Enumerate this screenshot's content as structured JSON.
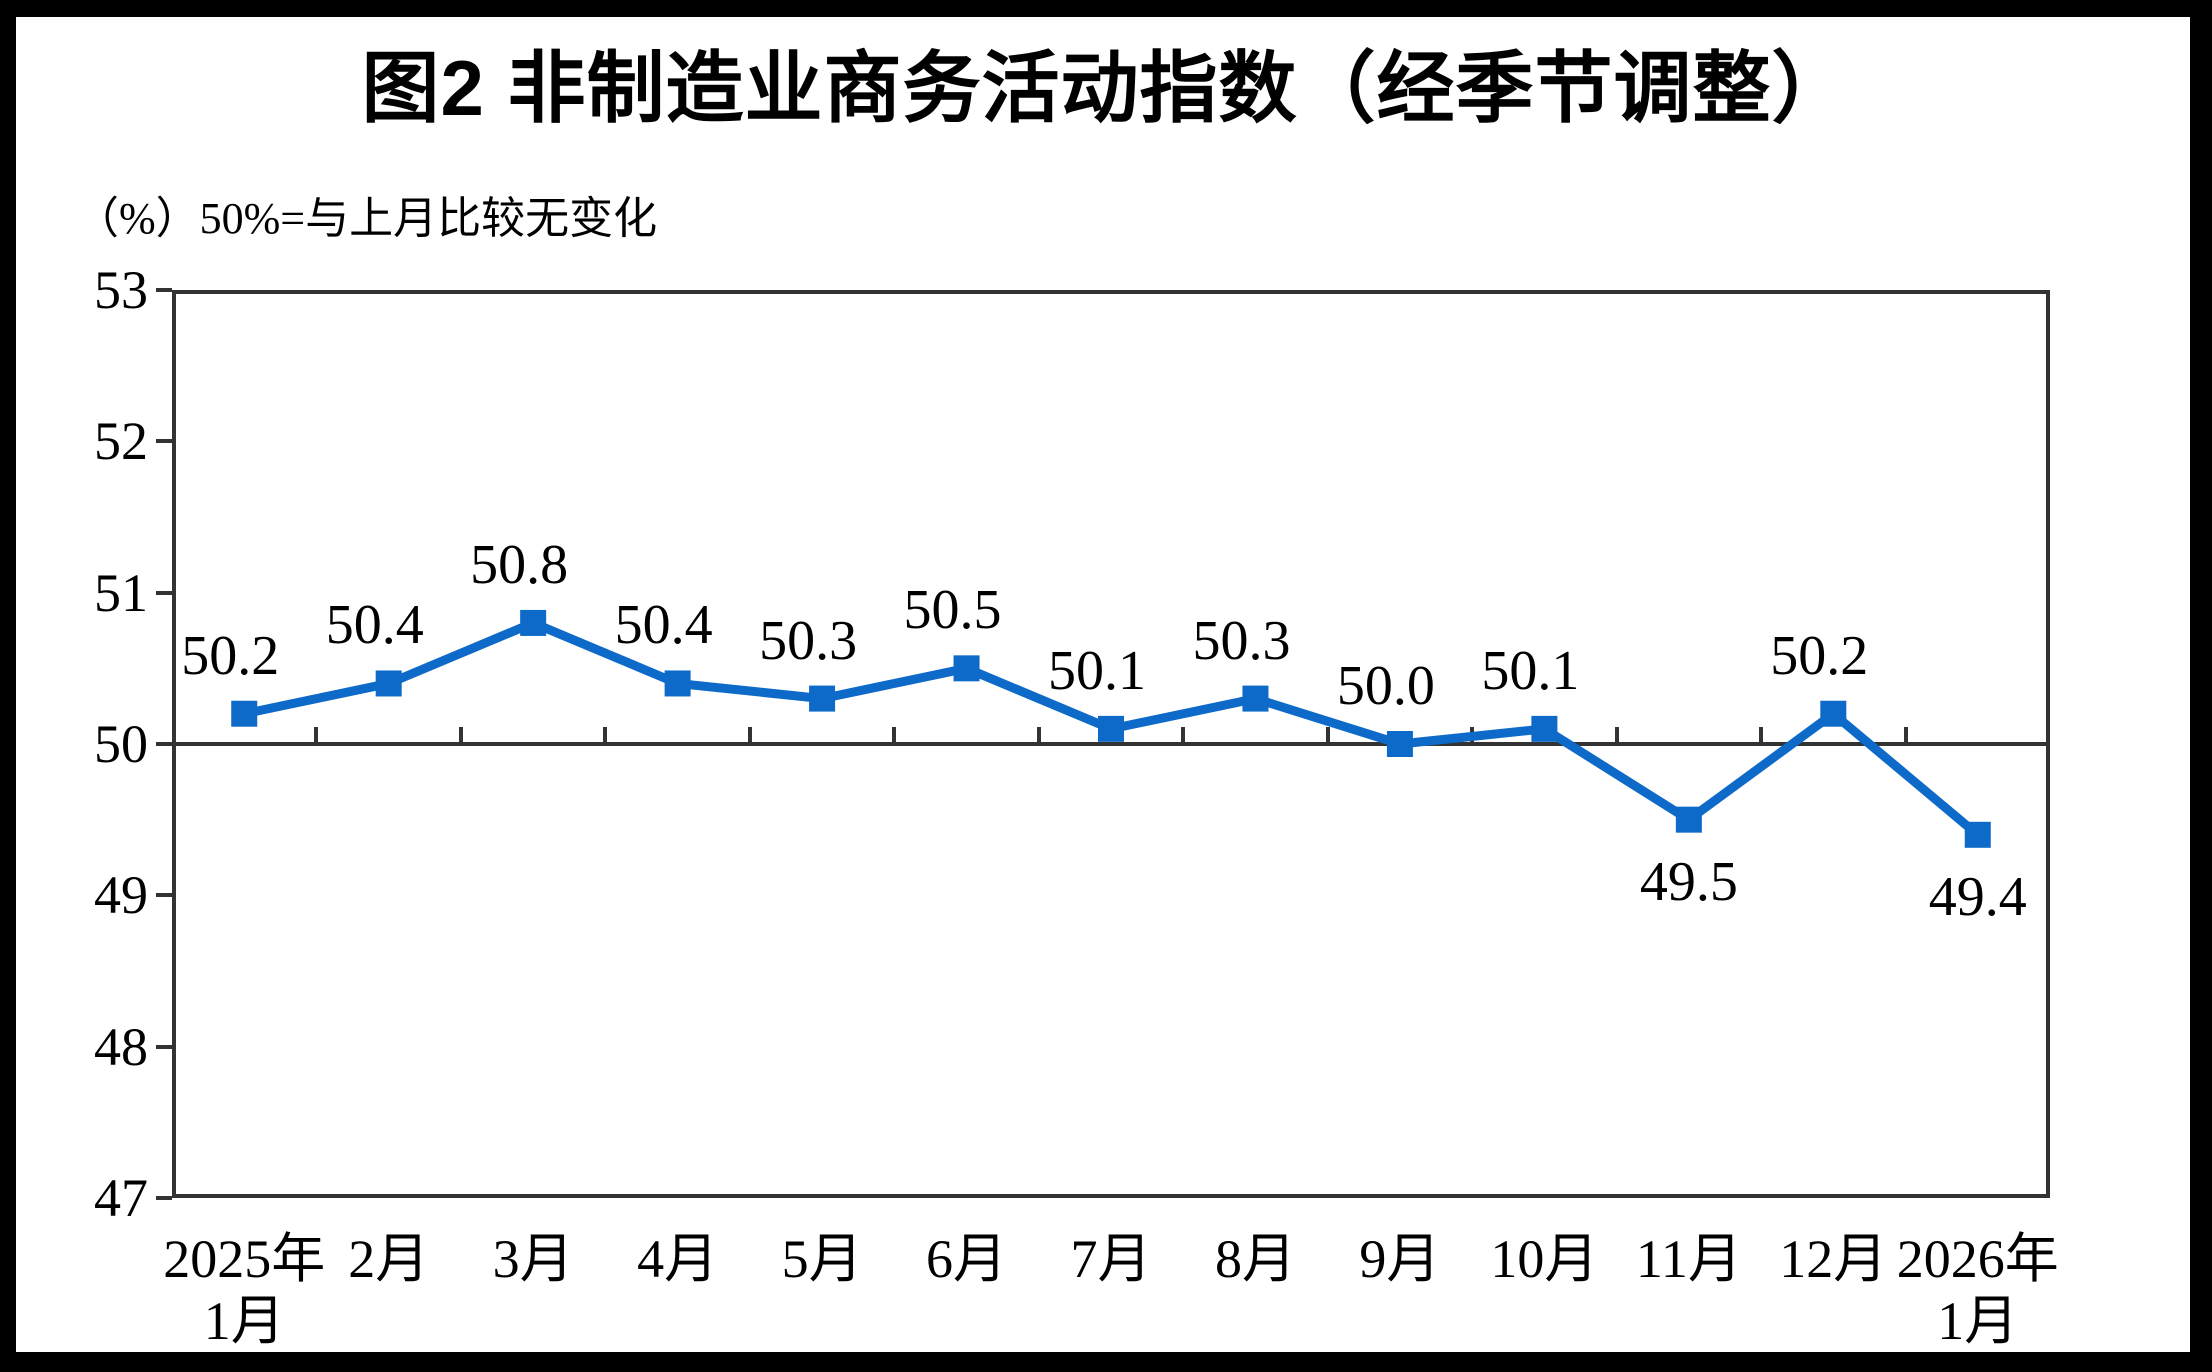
{
  "chart_data": {
    "type": "line",
    "title": "图2  非制造业商务活动指数（经季节调整）",
    "unit_label": "（%）50%=与上月比较无变化",
    "categories": [
      "2025年\n1月",
      "2月",
      "3月",
      "4月",
      "5月",
      "6月",
      "7月",
      "8月",
      "9月",
      "10月",
      "11月",
      "12月",
      "2026年\n1月"
    ],
    "values": [
      50.2,
      50.4,
      50.8,
      50.4,
      50.3,
      50.5,
      50.1,
      50.3,
      50.0,
      50.1,
      49.5,
      50.2,
      49.4
    ],
    "data_labels": [
      "50.2",
      "50.4",
      "50.8",
      "50.4",
      "50.3",
      "50.5",
      "50.1",
      "50.3",
      "50.0",
      "50.1",
      "49.5",
      "50.2",
      "49.4"
    ],
    "label_positions": [
      "above",
      "above",
      "above",
      "above",
      "above",
      "above",
      "above",
      "above",
      "above",
      "above",
      "below",
      "above",
      "below"
    ],
    "ylim": [
      47,
      53
    ],
    "yticks": [
      53,
      52,
      51,
      50,
      49,
      48,
      47
    ],
    "x_axis_cross": 50,
    "grid": false,
    "legend": "none",
    "marker": "square",
    "colors": {
      "line": "#0E6AC8",
      "axis": "#333333",
      "text": "#000000",
      "background": "#FFFFFF",
      "frame": "#000000"
    }
  }
}
